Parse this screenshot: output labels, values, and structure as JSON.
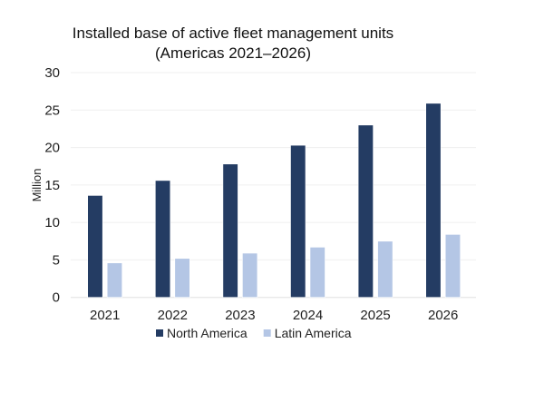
{
  "chart_data": {
    "type": "bar",
    "title": [
      "Installed base of active fleet management units",
      "(Americas 2021–2026)"
    ],
    "xlabel": "",
    "ylabel": "Million",
    "ylim": [
      0,
      30
    ],
    "yticks": [
      0,
      5,
      10,
      15,
      20,
      25,
      30
    ],
    "grid": true,
    "legend_position": "bottom",
    "categories": [
      "2021",
      "2022",
      "2023",
      "2024",
      "2025",
      "2026"
    ],
    "series": [
      {
        "name": "North America",
        "color": "#243c63",
        "values": [
          13.6,
          15.6,
          17.8,
          20.3,
          23.0,
          25.9
        ]
      },
      {
        "name": "Latin America",
        "color": "#b4c6e5",
        "values": [
          4.6,
          5.2,
          5.9,
          6.7,
          7.5,
          8.4
        ]
      }
    ]
  }
}
